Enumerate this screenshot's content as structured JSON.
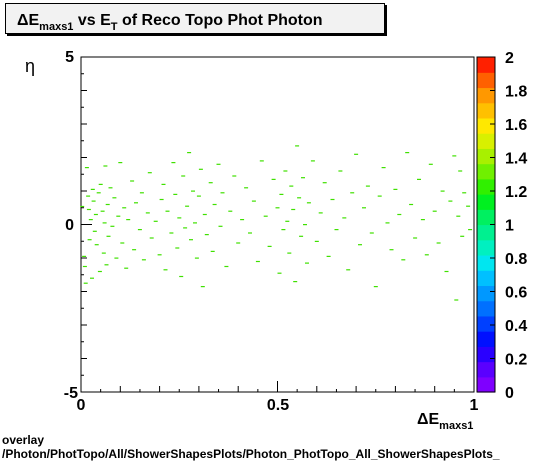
{
  "chart_data": {
    "type": "scatter",
    "title": {
      "delta": "Δ",
      "e1": "E",
      "sub1": "maxs1",
      "mid": " vs E",
      "sub2": "T",
      "rest": " of Reco Topo Phot Photon"
    },
    "xlabel": {
      "delta": "Δ",
      "e": "E",
      "sub": "maxs1"
    },
    "ylabel": "η",
    "xlim": [
      0,
      1
    ],
    "ylim": [
      -5,
      5
    ],
    "x_ticks": [
      "0",
      "0.5",
      "1"
    ],
    "y_ticks": [
      "-5",
      "0",
      "5"
    ],
    "colorbar": {
      "ticks": [
        "0",
        "0.2",
        "0.4",
        "0.6",
        "0.8",
        "1",
        "1.2",
        "1.4",
        "1.6",
        "1.8",
        "2"
      ],
      "range": [
        0,
        2
      ],
      "palette": [
        "#7f00ff",
        "#5a00ff",
        "#2a00ff",
        "#0010ff",
        "#0040ff",
        "#0070ff",
        "#0098ff",
        "#00c0ff",
        "#00e6f0",
        "#00f0c0",
        "#00f090",
        "#00f060",
        "#00f020",
        "#30f000",
        "#70f000",
        "#a8f000",
        "#d8f000",
        "#ffe800",
        "#ffc000",
        "#ff9800",
        "#ff6000",
        "#ff2000"
      ],
      "point_color": "#3fe000"
    },
    "points": [
      [
        0.003,
        0.54
      ],
      [
        0.008,
        -0.95
      ],
      [
        0.01,
        -1.25
      ],
      [
        0.012,
        -1.75
      ],
      [
        0.015,
        1.7
      ],
      [
        0.018,
        0.85
      ],
      [
        0.02,
        0.45
      ],
      [
        0.022,
        -0.45
      ],
      [
        0.025,
        0.15
      ],
      [
        0.028,
        -1.6
      ],
      [
        0.03,
        1.05
      ],
      [
        0.032,
        0.7
      ],
      [
        0.035,
        -0.2
      ],
      [
        0.038,
        0.3
      ],
      [
        0.04,
        -0.6
      ],
      [
        0.045,
        0.95
      ],
      [
        0.048,
        -1.4
      ],
      [
        0.05,
        1.2
      ],
      [
        0.055,
        0.4
      ],
      [
        0.058,
        -0.85
      ],
      [
        0.06,
        0.05
      ],
      [
        0.062,
        1.75
      ],
      [
        0.065,
        -1.2
      ],
      [
        0.068,
        0.6
      ],
      [
        0.07,
        -0.35
      ],
      [
        0.075,
        1.1
      ],
      [
        0.08,
        -0.05
      ],
      [
        0.085,
        0.8
      ],
      [
        0.09,
        -1.0
      ],
      [
        0.095,
        0.25
      ],
      [
        0.1,
        1.85
      ],
      [
        0.105,
        -0.55
      ],
      [
        0.11,
        0.5
      ],
      [
        0.115,
        -1.3
      ],
      [
        0.12,
        0.15
      ],
      [
        0.13,
        1.3
      ],
      [
        0.135,
        -0.75
      ],
      [
        0.14,
        0.65
      ],
      [
        0.15,
        -0.15
      ],
      [
        0.155,
        0.95
      ],
      [
        0.16,
        -1.05
      ],
      [
        0.17,
        0.35
      ],
      [
        0.175,
        1.55
      ],
      [
        0.18,
        -0.4
      ],
      [
        0.19,
        0.1
      ],
      [
        0.2,
        -0.9
      ],
      [
        0.205,
        0.75
      ],
      [
        0.21,
        1.2
      ],
      [
        0.215,
        -1.35
      ],
      [
        0.22,
        0.4
      ],
      [
        0.23,
        -0.25
      ],
      [
        0.235,
        1.85
      ],
      [
        0.24,
        0.9
      ],
      [
        0.245,
        -0.7
      ],
      [
        0.25,
        0.2
      ],
      [
        0.255,
        -1.55
      ],
      [
        0.26,
        1.45
      ],
      [
        0.265,
        -0.1
      ],
      [
        0.27,
        0.55
      ],
      [
        0.275,
        2.15
      ],
      [
        0.28,
        -0.45
      ],
      [
        0.285,
        1.0
      ],
      [
        0.29,
        0.05
      ],
      [
        0.295,
        -1.0
      ],
      [
        0.3,
        0.85
      ],
      [
        0.305,
        1.65
      ],
      [
        0.31,
        -1.85
      ],
      [
        0.315,
        0.3
      ],
      [
        0.32,
        -0.3
      ],
      [
        0.33,
        1.25
      ],
      [
        0.335,
        -0.8
      ],
      [
        0.34,
        0.6
      ],
      [
        0.35,
        1.8
      ],
      [
        0.355,
        -0.05
      ],
      [
        0.36,
        0.95
      ],
      [
        0.37,
        -1.25
      ],
      [
        0.38,
        0.4
      ],
      [
        0.39,
        1.45
      ],
      [
        0.4,
        -0.55
      ],
      [
        0.41,
        0.15
      ],
      [
        0.42,
        1.1
      ],
      [
        0.43,
        -0.25
      ],
      [
        0.44,
        0.7
      ],
      [
        0.45,
        -1.1
      ],
      [
        0.46,
        1.9
      ],
      [
        0.47,
        0.25
      ],
      [
        0.48,
        -0.65
      ],
      [
        0.49,
        1.35
      ],
      [
        0.5,
        0.5
      ],
      [
        0.505,
        -1.45
      ],
      [
        0.51,
        0.9
      ],
      [
        0.515,
        -0.15
      ],
      [
        0.52,
        1.6
      ],
      [
        0.525,
        0.1
      ],
      [
        0.53,
        -0.85
      ],
      [
        0.535,
        1.15
      ],
      [
        0.54,
        0.45
      ],
      [
        0.545,
        -1.7
      ],
      [
        0.55,
        2.35
      ],
      [
        0.555,
        0.8
      ],
      [
        0.56,
        -0.35
      ],
      [
        0.565,
        1.4
      ],
      [
        0.57,
        0.0
      ],
      [
        0.575,
        -1.15
      ],
      [
        0.58,
        0.65
      ],
      [
        0.59,
        1.9
      ],
      [
        0.6,
        -0.5
      ],
      [
        0.61,
        0.35
      ],
      [
        0.62,
        1.25
      ],
      [
        0.63,
        -0.95
      ],
      [
        0.64,
        0.75
      ],
      [
        0.65,
        -0.15
      ],
      [
        0.66,
        1.6
      ],
      [
        0.67,
        0.2
      ],
      [
        0.68,
        -1.35
      ],
      [
        0.69,
        0.95
      ],
      [
        0.7,
        2.1
      ],
      [
        0.71,
        -0.6
      ],
      [
        0.72,
        0.5
      ],
      [
        0.73,
        1.15
      ],
      [
        0.74,
        -0.25
      ],
      [
        0.75,
        -1.85
      ],
      [
        0.76,
        0.85
      ],
      [
        0.77,
        1.7
      ],
      [
        0.78,
        0.05
      ],
      [
        0.79,
        -0.75
      ],
      [
        0.8,
        1.05
      ],
      [
        0.81,
        0.3
      ],
      [
        0.82,
        -1.05
      ],
      [
        0.83,
        2.15
      ],
      [
        0.84,
        0.6
      ],
      [
        0.85,
        -0.4
      ],
      [
        0.86,
        1.35
      ],
      [
        0.87,
        0.15
      ],
      [
        0.88,
        -0.9
      ],
      [
        0.89,
        1.8
      ],
      [
        0.9,
        0.4
      ],
      [
        0.91,
        -0.55
      ],
      [
        0.92,
        1.0
      ],
      [
        0.93,
        -1.4
      ],
      [
        0.94,
        0.7
      ],
      [
        0.95,
        2.05
      ],
      [
        0.955,
        -2.25
      ],
      [
        0.96,
        0.25
      ],
      [
        0.965,
        1.6
      ],
      [
        0.97,
        -0.35
      ],
      [
        0.975,
        0.95
      ],
      [
        0.985,
        0.55
      ],
      [
        0.99,
        -0.15
      ]
    ]
  },
  "footer": {
    "line1": "overlay",
    "line2": "/Photon/PhotTopo/All/ShowerShapesPlots/Photon_PhotTopo_All_ShowerShapesPlots_"
  }
}
